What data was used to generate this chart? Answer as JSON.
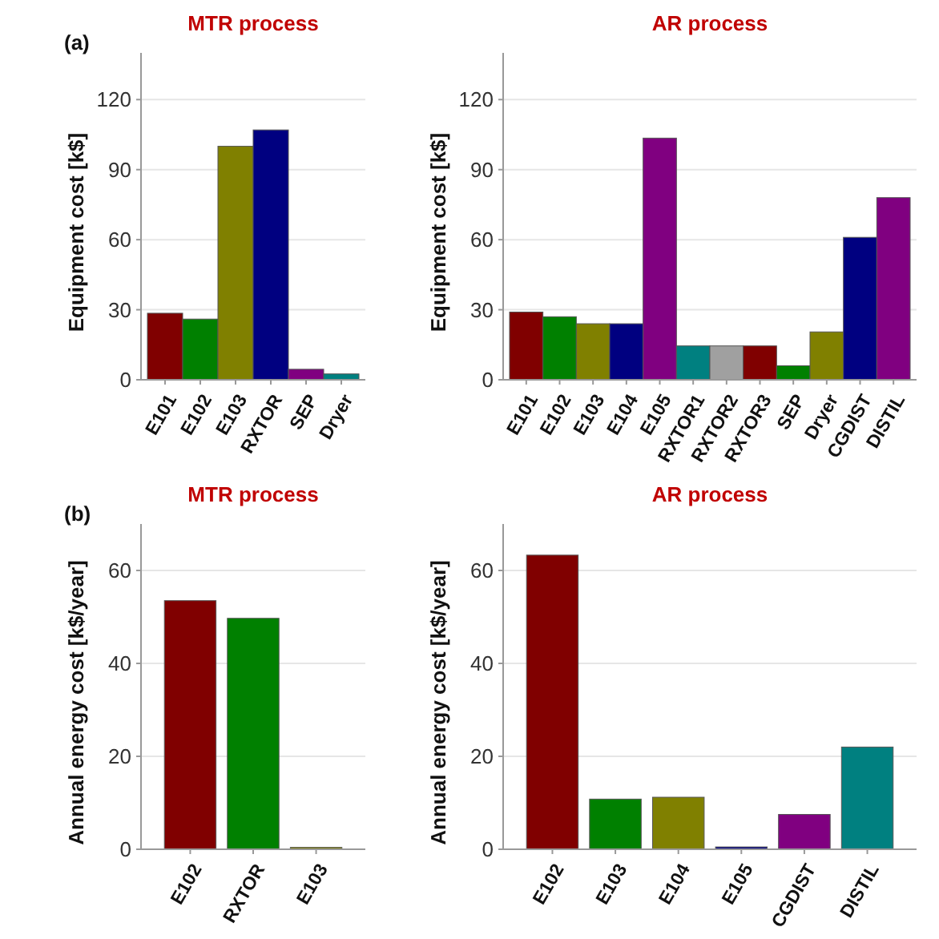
{
  "chart_data": [
    {
      "type": "bar",
      "title": "MTR process",
      "annotations": [
        "(a)"
      ],
      "ylabel": "Equipment cost [k$]",
      "categories": [
        "E101",
        "E102",
        "E103",
        "RXTOR",
        "SEP",
        "Dryer"
      ],
      "values": [
        28.5,
        26,
        100,
        107,
        4.5,
        2.5
      ],
      "colors": [
        "#800000",
        "#008000",
        "#808000",
        "#000080",
        "#800080",
        "#008080"
      ],
      "ylim": [
        0,
        140
      ],
      "yticks": [
        0,
        30,
        60,
        90,
        120
      ],
      "grid": "y"
    },
    {
      "type": "bar",
      "title": "AR process",
      "ylabel": "Equipment cost [k$]",
      "categories": [
        "E101",
        "E102",
        "E103",
        "E104",
        "E105",
        "RXTOR1",
        "RXTOR2",
        "RXTOR3",
        "SEP",
        "Dryer",
        "CGDIST",
        "DISTIL"
      ],
      "values": [
        29,
        27,
        24,
        24,
        103.5,
        14.5,
        14.5,
        14.5,
        6,
        20.5,
        61,
        78
      ],
      "colors": [
        "#800000",
        "#008000",
        "#808000",
        "#000080",
        "#800080",
        "#008080",
        "#a0a0a0",
        "#800000",
        "#008000",
        "#808000",
        "#000080",
        "#800080"
      ],
      "ylim": [
        0,
        140
      ],
      "yticks": [
        0,
        30,
        60,
        90,
        120
      ],
      "grid": "y"
    },
    {
      "type": "bar",
      "title": "MTR process",
      "annotations": [
        "(b)"
      ],
      "ylabel": "Annual energy cost [k$/year]",
      "categories": [
        "E102",
        "RXTOR",
        "E103"
      ],
      "values": [
        53.5,
        49.7,
        0.4
      ],
      "colors": [
        "#800000",
        "#008000",
        "#808000"
      ],
      "ylim": [
        0,
        70
      ],
      "yticks": [
        0,
        20,
        40,
        60
      ],
      "grid": "y"
    },
    {
      "type": "bar",
      "title": "AR process",
      "ylabel": "Annual energy cost [k$/year]",
      "categories": [
        "E102",
        "E103",
        "E104",
        "E105",
        "CGDIST",
        "DISTIL"
      ],
      "values": [
        63.3,
        10.8,
        11.2,
        0.5,
        7.5,
        22
      ],
      "colors": [
        "#800000",
        "#008000",
        "#808000",
        "#000080",
        "#800080",
        "#008080"
      ],
      "ylim": [
        0,
        70
      ],
      "yticks": [
        0,
        20,
        40,
        60
      ],
      "grid": "y"
    }
  ]
}
